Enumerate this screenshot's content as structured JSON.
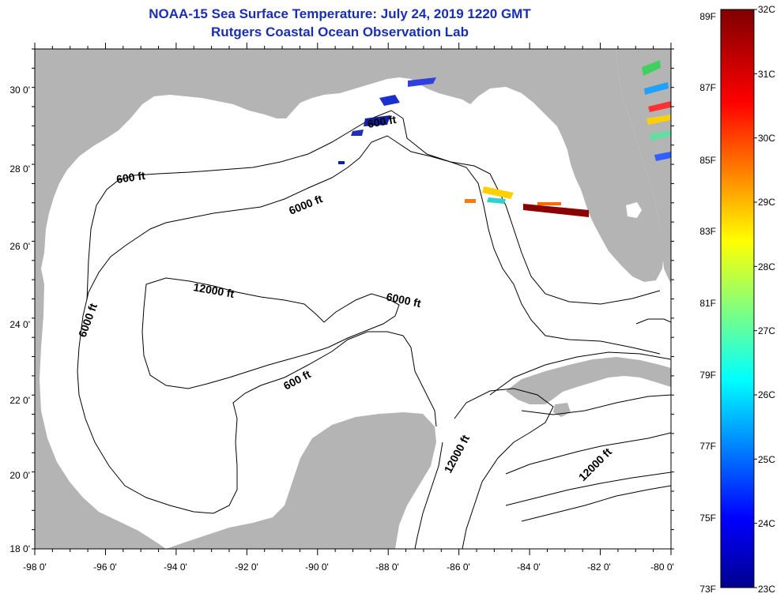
{
  "title_line1": "NOAA-15 Sea Surface Temperature:  July 24, 2019 1220 GMT",
  "title_line2": "Rutgers Coastal Ocean Observation Lab",
  "map": {
    "lon_labels": [
      "-98 0'",
      "-96 0'",
      "-94 0'",
      "-92 0'",
      "-90 0'",
      "-88 0'",
      "-86 0'",
      "-84 0'",
      "-82 0'",
      "-80 0'"
    ],
    "lat_labels": [
      "30 0'",
      "28 0'",
      "26 0'",
      "24 0'",
      "22 0'",
      "20 0'",
      "18 0'"
    ],
    "contour_labels": [
      "600 ft",
      "6000 ft",
      "12000 ft",
      "6000 ft",
      "6000 ft",
      "600 ft",
      "600 ft",
      "12000 ft",
      "12000 ft"
    ],
    "land_color": "#b4b4b4",
    "ocean_color": "#ffffff"
  },
  "colorbar": {
    "fahrenheit_labels": [
      "89F",
      "87F",
      "85F",
      "83F",
      "81F",
      "79F",
      "77F",
      "75F",
      "73F"
    ],
    "celsius_labels": [
      "32C",
      "31C",
      "30C",
      "29C",
      "28C",
      "27C",
      "26C",
      "25C",
      "24C",
      "23C"
    ]
  }
}
